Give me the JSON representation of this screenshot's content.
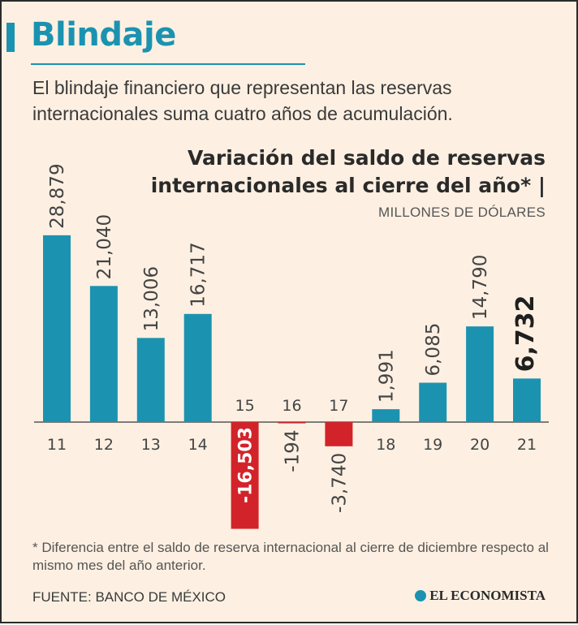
{
  "header": {
    "title": "Blindaje",
    "subtitle": "El blindaje financiero que representan las reservas internacionales suma cuatro años de acumulación."
  },
  "chart_data": {
    "type": "bar",
    "title": "Variación del saldo de reservas internacionales al cierre del año* |",
    "units": "MILLONES DE DÓLARES",
    "categories": [
      "11",
      "12",
      "13",
      "14",
      "15",
      "16",
      "17",
      "18",
      "19",
      "20",
      "21"
    ],
    "values": [
      28879,
      21040,
      13006,
      16717,
      -16503,
      -194,
      -3740,
      1991,
      6085,
      14790,
      6732
    ],
    "value_labels": [
      "28,879",
      "21,040",
      "13,006",
      "16,717",
      "-16,503",
      "-194",
      "-3,740",
      "1,991",
      "6,085",
      "14,790",
      "6,732"
    ],
    "ylim": [
      -17000,
      29000
    ],
    "grid": false,
    "highlight_last": true,
    "colors": {
      "positive": "#1b93b0",
      "negative": "#d2232a"
    }
  },
  "footer": {
    "footnote": "* Diferencia entre el saldo de reserva internacional al cierre de diciembre respecto al mismo mes del año anterior.",
    "source": "FUENTE: BANCO DE MÉXICO",
    "brand": "EL ECONOMISTA"
  },
  "colors": {
    "accent": "#1b93b0",
    "negative": "#d2232a",
    "background": "#fdf0e2"
  }
}
